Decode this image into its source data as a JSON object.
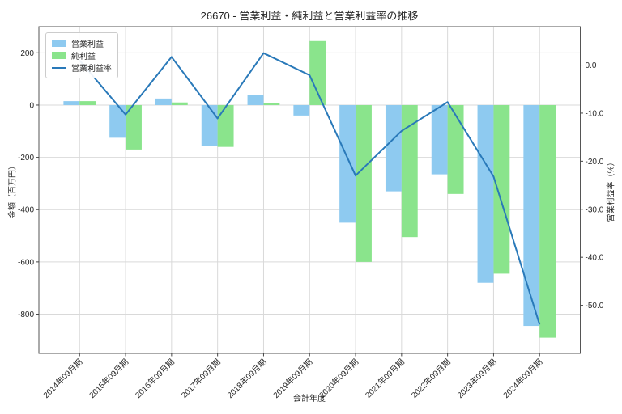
{
  "chart_data": {
    "type": "bar+line",
    "title": "26670 - 営業利益・純利益と営業利益率の推移",
    "xlabel": "会計年度",
    "ylabel_left": "金額（百万円）",
    "ylabel_right": "営業利益率（%）",
    "categories": [
      "2014年09月期",
      "2015年09月期",
      "2016年09月期",
      "2017年09月期",
      "2018年09月期",
      "2019年09月期",
      "2020年09月期",
      "2021年09月期",
      "2022年09月期",
      "2023年09月期",
      "2024年09月期"
    ],
    "series": [
      {
        "name": "営業利益",
        "type": "bar",
        "axis": "left",
        "color": "#8ecaf0",
        "values": [
          15,
          -125,
          25,
          -155,
          40,
          -40,
          -450,
          -330,
          -265,
          -680,
          -845
        ]
      },
      {
        "name": "純利益",
        "type": "bar",
        "axis": "left",
        "color": "#8ae48c",
        "values": [
          15,
          -170,
          10,
          -160,
          8,
          245,
          -600,
          -505,
          -340,
          -645,
          -890
        ]
      },
      {
        "name": "営業利益率",
        "type": "line",
        "axis": "right",
        "color": "#2979b9",
        "values": [
          1.0,
          -10.3,
          1.7,
          -11.1,
          2.5,
          -2.1,
          -23.0,
          -13.7,
          -7.7,
          -23.2,
          -54.0
        ]
      }
    ],
    "ylim_left": [
      -950,
      300
    ],
    "yticks_left": [
      200,
      0,
      -200,
      -400,
      -600,
      -800
    ],
    "ylim_right": [
      -60,
      8
    ],
    "yticks_right_values": [
      0,
      -10,
      -20,
      -30,
      -40,
      -50
    ],
    "yticks_right_labels": [
      "0.0",
      "-10.0",
      "-20.0",
      "-30.0",
      "-40.0",
      "-50.0"
    ],
    "grid": true,
    "legend_position": "upper left",
    "colors": {
      "grid": "#d9d9d9",
      "spine": "#555555",
      "tick": "#444444",
      "tick_label": "#262626",
      "background": "#ffffff"
    }
  }
}
